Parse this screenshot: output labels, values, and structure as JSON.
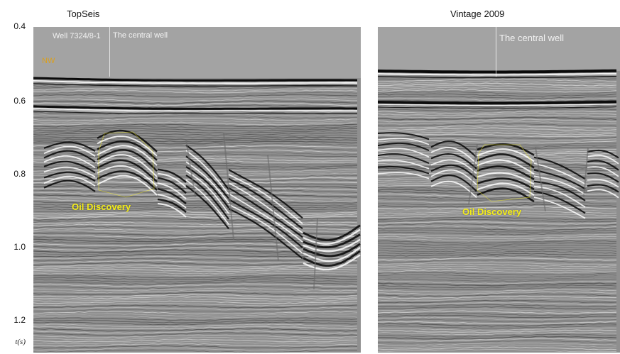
{
  "panels": {
    "left": {
      "title": "TopSeis",
      "well_label": "Well 7324/8-1",
      "central_well_label": "The central well",
      "direction_label": "NW",
      "annotation": "Oil Discovery"
    },
    "right": {
      "title": "Vintage 2009",
      "central_well_label": "The central well",
      "annotation": "Oil Discovery"
    }
  },
  "axis": {
    "unit": "t(s)",
    "ticks": [
      "0.4",
      "0.6",
      "0.8",
      "1.0",
      "1.2"
    ]
  },
  "colors": {
    "annotation": "#f5ee18",
    "direction": "#d9a020",
    "well_text": "#f2f2f2"
  }
}
